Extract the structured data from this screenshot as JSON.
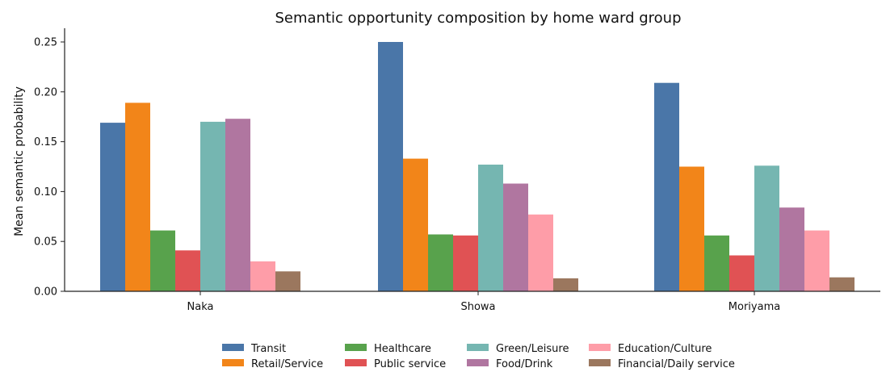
{
  "chart_data": {
    "type": "bar",
    "title": "Semantic opportunity composition by home ward group",
    "xlabel": "",
    "ylabel": "Mean semantic probability",
    "ylim": [
      0,
      0.25
    ],
    "yticks": [
      "0.00",
      "0.05",
      "0.10",
      "0.15",
      "0.20",
      "0.25"
    ],
    "grid": false,
    "legend_placement": "bottom-center",
    "categories": [
      "Naka",
      "Showa",
      "Moriyama"
    ],
    "series": [
      {
        "name": "Transit",
        "color": "#4a76a8",
        "values": [
          0.169,
          0.25,
          0.209
        ]
      },
      {
        "name": "Retail/Service",
        "color": "#f28519",
        "values": [
          0.189,
          0.133,
          0.125
        ]
      },
      {
        "name": "Healthcare",
        "color": "#58a24c",
        "values": [
          0.061,
          0.057,
          0.056
        ]
      },
      {
        "name": "Public service",
        "color": "#e05254",
        "values": [
          0.041,
          0.056,
          0.036
        ]
      },
      {
        "name": "Green/Leisure",
        "color": "#75b6b1",
        "values": [
          0.17,
          0.127,
          0.126
        ]
      },
      {
        "name": "Food/Drink",
        "color": "#b076a0",
        "values": [
          0.173,
          0.108,
          0.084
        ]
      },
      {
        "name": "Education/Culture",
        "color": "#fe9da8",
        "values": [
          0.03,
          0.077,
          0.061
        ]
      },
      {
        "name": "Financial/Daily service",
        "color": "#9b775e",
        "values": [
          0.02,
          0.013,
          0.014
        ]
      }
    ]
  }
}
